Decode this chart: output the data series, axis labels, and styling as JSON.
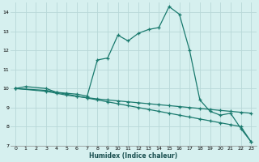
{
  "xlabel": "Humidex (Indice chaleur)",
  "bg_color": "#d6f0ef",
  "grid_color": "#b8d8d8",
  "line_color": "#1a7a6e",
  "xlim": [
    -0.5,
    23.5
  ],
  "ylim": [
    7,
    14.5
  ],
  "yticks": [
    7,
    8,
    9,
    10,
    11,
    12,
    13,
    14
  ],
  "xticks": [
    0,
    1,
    2,
    3,
    4,
    5,
    6,
    7,
    8,
    9,
    10,
    11,
    12,
    13,
    14,
    15,
    16,
    17,
    18,
    19,
    20,
    21,
    22,
    23
  ],
  "line1_x": [
    0,
    1,
    3,
    4,
    5,
    6,
    7,
    8,
    9,
    10,
    11,
    12,
    13,
    14,
    15,
    16,
    17,
    18,
    19,
    20,
    21,
    22,
    23
  ],
  "line1_y": [
    10.0,
    10.1,
    10.0,
    9.8,
    9.75,
    9.7,
    9.6,
    11.5,
    11.6,
    12.8,
    12.5,
    12.9,
    13.1,
    13.2,
    14.3,
    13.9,
    12.0,
    9.4,
    8.8,
    8.6,
    8.7,
    7.9,
    7.2
  ],
  "line2_x": [
    0,
    3,
    4,
    5,
    6,
    7,
    8,
    9,
    10,
    11,
    12,
    13,
    14,
    15,
    16,
    17,
    18,
    19,
    20,
    21,
    22,
    23
  ],
  "line2_y": [
    10.0,
    9.85,
    9.75,
    9.65,
    9.58,
    9.52,
    9.45,
    9.4,
    9.35,
    9.3,
    9.25,
    9.2,
    9.15,
    9.1,
    9.05,
    9.0,
    8.95,
    8.9,
    8.85,
    8.8,
    8.75,
    8.7
  ],
  "line3_x": [
    0,
    3,
    4,
    5,
    6,
    7,
    8,
    9,
    10,
    11,
    12,
    13,
    14,
    15,
    16,
    17,
    18,
    19,
    20,
    21,
    22,
    23
  ],
  "line3_y": [
    10.0,
    9.9,
    9.8,
    9.7,
    9.6,
    9.5,
    9.4,
    9.3,
    9.2,
    9.1,
    9.0,
    8.9,
    8.8,
    8.7,
    8.6,
    8.5,
    8.4,
    8.3,
    8.2,
    8.1,
    8.0,
    7.2
  ]
}
